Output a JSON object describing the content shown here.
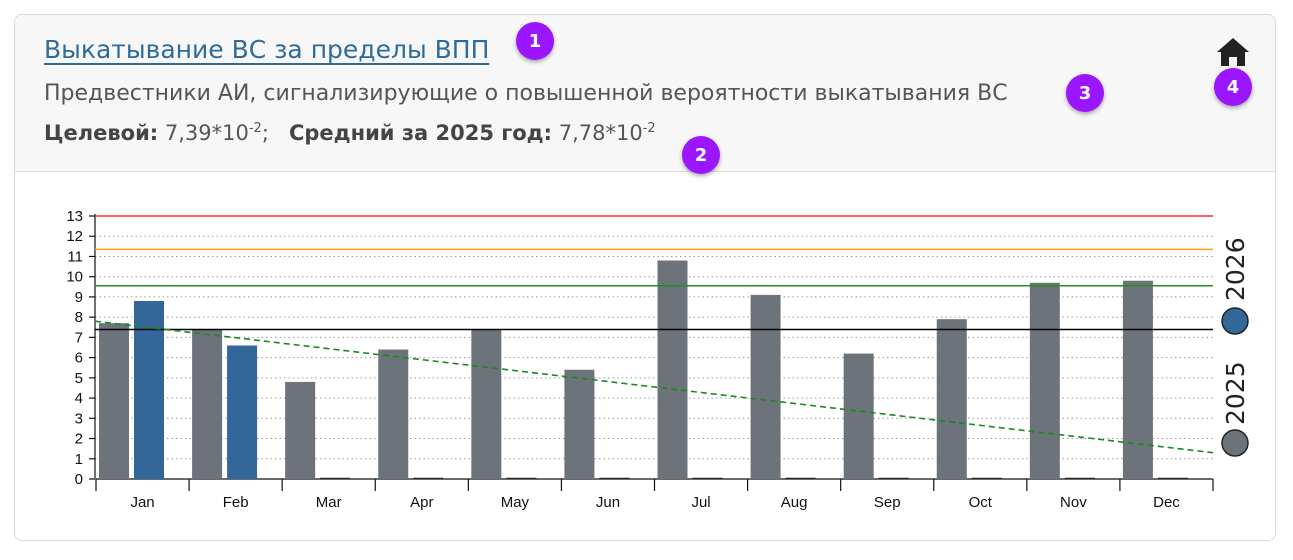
{
  "header": {
    "title": "Выкатывание ВС за пределы ВПП",
    "subtitle": "Предвестники АИ, сигнализирующие о повышенной вероятности выкатывания ВС",
    "target_label": "Целевой:",
    "target_value": "7,39*10",
    "target_exp": "-2",
    "target_sep": ";",
    "avg_label": "Средний за 2025 год:",
    "avg_value": "7,78*10",
    "avg_exp": "-2",
    "home_icon": "home-icon"
  },
  "badges": [
    "1",
    "2",
    "3",
    "4"
  ],
  "colors": {
    "series_2025": "#6c737b",
    "series_2026": "#336699",
    "line_red": "#ff2a2a",
    "line_orange": "#ff9a1a",
    "line_green": "#1f8f1f",
    "line_black": "#000000",
    "trend": "#1a8a1a",
    "badge": "#9b15ff"
  },
  "chart_data": {
    "type": "bar",
    "categories": [
      "Jan",
      "Feb",
      "Mar",
      "Apr",
      "May",
      "Jun",
      "Jul",
      "Aug",
      "Sep",
      "Oct",
      "Nov",
      "Dec"
    ],
    "series": [
      {
        "name": "2025",
        "values": [
          7.7,
          7.4,
          4.8,
          6.4,
          7.4,
          5.4,
          10.8,
          9.1,
          6.2,
          7.9,
          9.7,
          9.8
        ]
      },
      {
        "name": "2026",
        "values": [
          8.8,
          6.6,
          null,
          null,
          null,
          null,
          null,
          null,
          null,
          null,
          null,
          null
        ]
      }
    ],
    "ylim": [
      0,
      13
    ],
    "yticks": [
      "0",
      "1",
      "2",
      "3",
      "4",
      "5",
      "6",
      "7",
      "8",
      "9",
      "10",
      "11",
      "12",
      "13"
    ],
    "reference_lines": [
      {
        "value": 13.0,
        "color": "red"
      },
      {
        "value": 11.35,
        "color": "orange"
      },
      {
        "value": 9.55,
        "color": "green"
      },
      {
        "value": 7.39,
        "color": "black"
      }
    ],
    "trendline": {
      "start": 7.8,
      "end": 1.3,
      "style": "dashed",
      "color": "green"
    },
    "grid": "horizontal dotted",
    "legend_position": "right, vertical"
  }
}
